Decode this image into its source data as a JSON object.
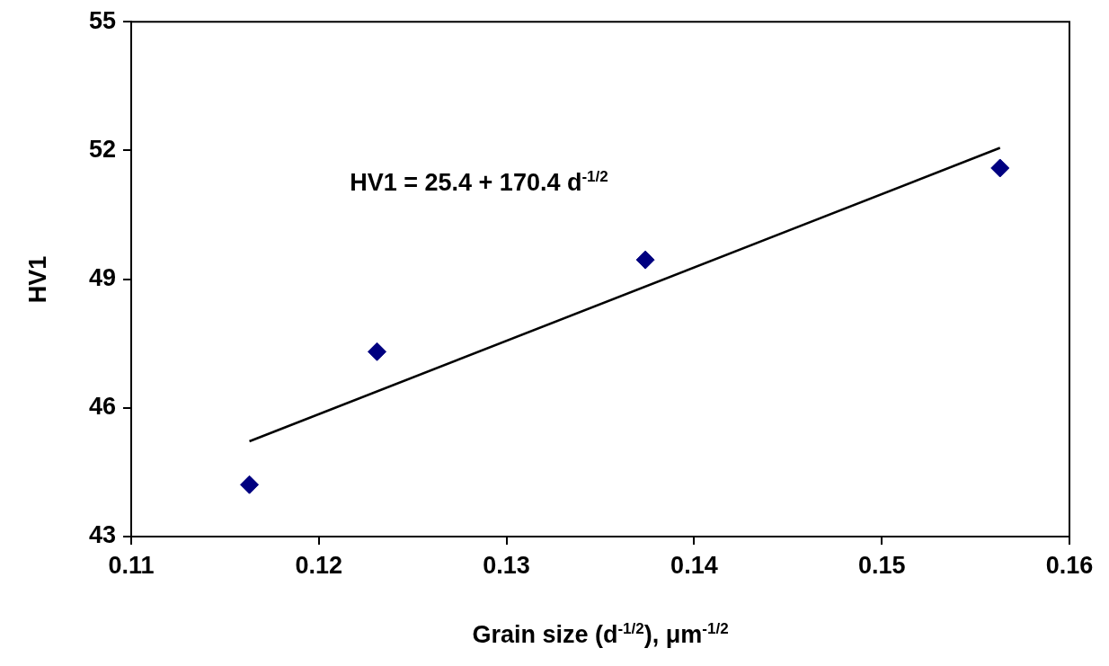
{
  "chart_data": {
    "type": "scatter",
    "xlabel": "Grain size (d$^{-1/2}$), μm$^{-1/2}$",
    "ylabel": "HV1",
    "annotations": [
      "HV1 = 25.4 + 170.4 d$^{-1/2}$"
    ],
    "x": [
      0.1163,
      0.1231,
      0.1374,
      0.1563
    ],
    "series": [
      {
        "color": "#000080",
        "marker": "diamond",
        "values": [
          44.21,
          47.31,
          49.45,
          51.59
        ]
      },
      {
        "type": "line",
        "color": "#000000",
        "marker": "none",
        "line_style": "solid",
        "x": [
          0.1163,
          0.1563
        ],
        "values": [
          45.22,
          52.06
        ]
      }
    ],
    "xlim": [
      0.11,
      0.16
    ],
    "xticks": [
      0.11,
      0.12,
      0.13,
      0.14,
      0.15,
      0.16
    ],
    "ylim": [
      43,
      55
    ],
    "yticks": [
      43,
      46,
      49,
      52,
      55
    ],
    "grid": false,
    "legend": false
  }
}
